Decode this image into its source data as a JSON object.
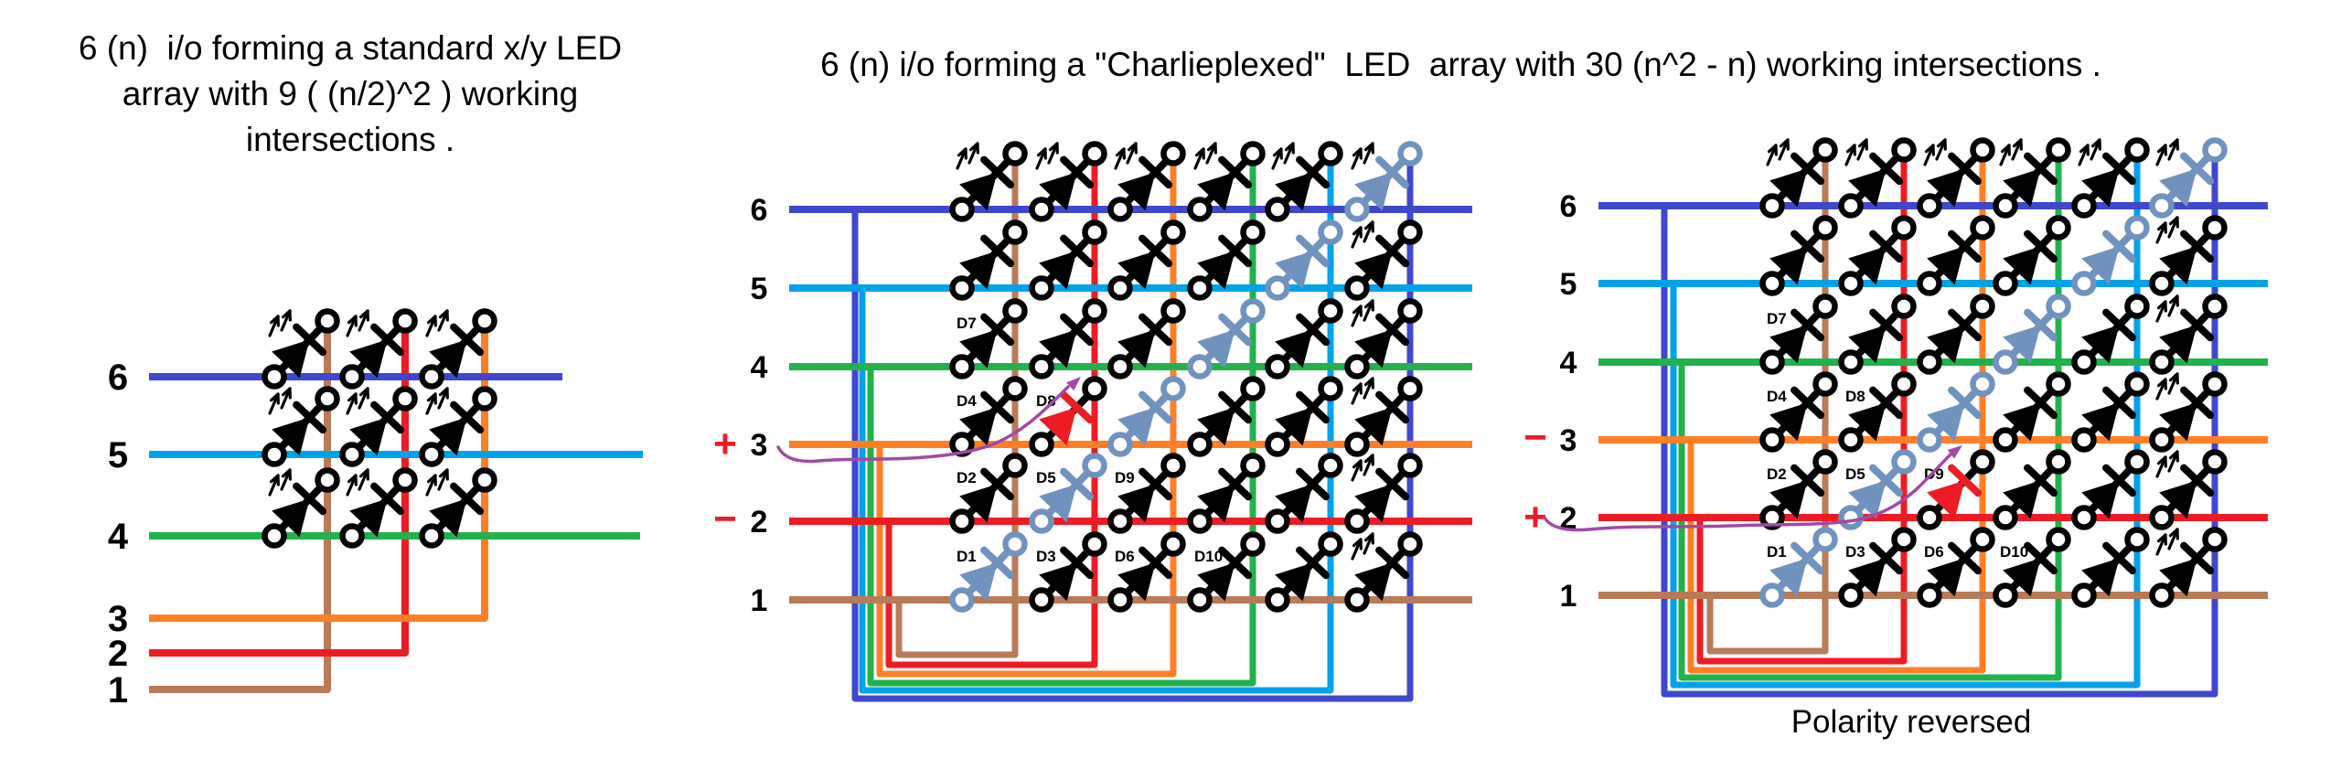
{
  "titles": {
    "standard_array": "6 (n)  i/o forming a standard x/y LED\narray with 9 ( (n/2)^2 ) working\nintersections .",
    "charlieplexed_array": "6 (n) i/o forming a \"Charlieplexed\"  LED  array with 30 (n^2 - n) working intersections .",
    "polarity_note": "Polarity reversed"
  },
  "io_channels": [
    {
      "id": 1,
      "label": "1",
      "color": "#b97a57",
      "color_name": "brown"
    },
    {
      "id": 2,
      "label": "2",
      "color": "#ed1c24",
      "color_name": "red"
    },
    {
      "id": 3,
      "label": "3",
      "color": "#ff7f27",
      "color_name": "orange"
    },
    {
      "id": 4,
      "label": "4",
      "color": "#22b14c",
      "color_name": "green"
    },
    {
      "id": 5,
      "label": "5",
      "color": "#00a2e8",
      "color_name": "cyan"
    },
    {
      "id": 6,
      "label": "6",
      "color": "#3f48cc",
      "color_name": "blue"
    }
  ],
  "led_styles": {
    "normal": "#000000",
    "ghost": "#7092be",
    "lit": "#ed1c24",
    "terminal_fill": "#ffffff"
  },
  "annotation_color": "#a349a4",
  "sign_color": "#ed1c24",
  "signs": {
    "plus": "+",
    "minus": "−"
  },
  "diagrams": {
    "standard": {
      "led_rows": [
        6,
        5,
        4
      ],
      "led_cols": [
        1,
        2,
        3
      ]
    },
    "charlie_powered": {
      "plus_row": 3,
      "minus_row": 2,
      "lit_led": "D8"
    },
    "charlie_reversed": {
      "plus_row": 2,
      "minus_row": 3,
      "lit_led": "D9"
    },
    "labeled_leds": [
      {
        "label": "D1",
        "row": 1,
        "col": 1
      },
      {
        "label": "D2",
        "row": 2,
        "col": 1
      },
      {
        "label": "D3",
        "row": 1,
        "col": 2
      },
      {
        "label": "D4",
        "row": 3,
        "col": 1
      },
      {
        "label": "D5",
        "row": 2,
        "col": 2
      },
      {
        "label": "D6",
        "row": 1,
        "col": 3
      },
      {
        "label": "D7",
        "row": 4,
        "col": 1
      },
      {
        "label": "D8",
        "row": 3,
        "col": 2
      },
      {
        "label": "D9",
        "row": 2,
        "col": 3
      },
      {
        "label": "D10",
        "row": 1,
        "col": 4
      }
    ]
  }
}
